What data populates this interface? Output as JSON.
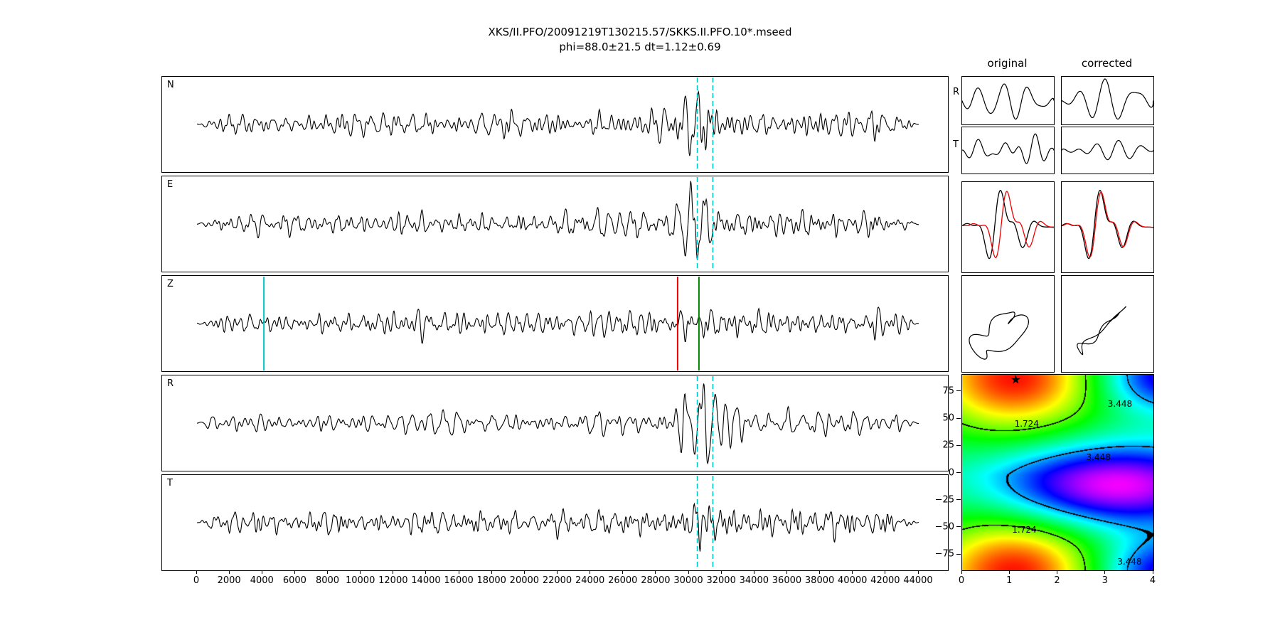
{
  "figure": {
    "title_line1": "XKS/II.PFO/20091219T130215.57/SKKS.II.PFO.10*.mseed",
    "title_line2": "phi=88.0±21.5 dt=1.12±0.69"
  },
  "labels": {
    "original": "original",
    "corrected": "corrected",
    "pm_row_r": "R",
    "pm_row_t": "T"
  },
  "colors": {
    "trace": "#000000",
    "window_line": "#00c3c3",
    "start_pick": "#00c3c3",
    "red_pick": "#ee0000",
    "green_pick": "#007f00",
    "overlay_secondary": "#ee0000"
  },
  "chart_data": [
    {
      "type": "line",
      "name": "seismogram-panels",
      "components": [
        "N",
        "E",
        "Z",
        "R",
        "T"
      ],
      "x_range": [
        0,
        44000
      ],
      "x_ticks": [
        "0",
        "2000",
        "4000",
        "6000",
        "8000",
        "10000",
        "12000",
        "14000",
        "16000",
        "18000",
        "20000",
        "22000",
        "24000",
        "26000",
        "28000",
        "30000",
        "32000",
        "34000",
        "36000",
        "38000",
        "40000",
        "42000",
        "44000"
      ],
      "window_markers": {
        "applies_to": [
          "N",
          "E",
          "R",
          "T"
        ],
        "x": [
          30500,
          31450
        ],
        "style": "dashed",
        "color_key": "window_line"
      },
      "z_markers": [
        {
          "x": 4080,
          "color_key": "start_pick"
        },
        {
          "x": 29300,
          "color_key": "red_pick"
        },
        {
          "x": 30600,
          "color_key": "green_pick"
        }
      ],
      "signal_burst_x": 30600,
      "burst_strength": {
        "N": 1.5,
        "E": 1.5,
        "Z": 0.5,
        "R": 1.7,
        "T": 0.8
      }
    },
    {
      "type": "line",
      "name": "windowed-waveforms",
      "columns": [
        "original",
        "corrected"
      ],
      "rows": [
        "R",
        "T"
      ]
    },
    {
      "type": "line",
      "name": "fast-slow-overlay",
      "columns": [
        "original",
        "corrected"
      ],
      "series_colors": [
        "#000000",
        "#ee0000"
      ]
    },
    {
      "type": "line",
      "name": "particle-motion",
      "columns": [
        "original",
        "corrected"
      ]
    },
    {
      "type": "heatmap",
      "name": "error-surface",
      "x_range": [
        0,
        4
      ],
      "y_range": [
        -90,
        90
      ],
      "x_ticks": [
        "0",
        "1",
        "2",
        "3",
        "4"
      ],
      "y_ticks": [
        "75",
        "50",
        "25",
        "0",
        "−25",
        "−50",
        "−75"
      ],
      "contour_levels": [
        1.724,
        3.448
      ],
      "contour_labels": [
        {
          "text": "1.724",
          "x": 1.35,
          "y": 45
        },
        {
          "text": "1.724",
          "x": 1.3,
          "y": -53
        },
        {
          "text": "3.448",
          "x": 3.3,
          "y": 63
        },
        {
          "text": "3.448",
          "x": 2.85,
          "y": 14
        },
        {
          "text": "3.448",
          "x": 3.5,
          "y": -82
        }
      ],
      "best_solution": {
        "phi": 88.0,
        "dt": 1.12
      },
      "star_glyph": "★"
    }
  ]
}
